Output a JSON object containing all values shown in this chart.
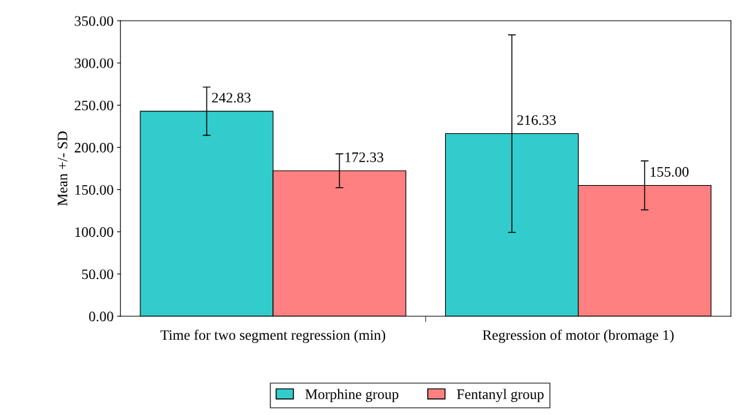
{
  "chart_data": {
    "type": "bar",
    "ylabel": "Mean +/- SD",
    "categories": [
      "Time for two segment regression (min)",
      "Regression of motor (bromage 1)"
    ],
    "series": [
      {
        "name": "Morphine group",
        "color": "#33cccc",
        "values": [
          242.83,
          216.33
        ],
        "errors": [
          28.6,
          117
        ],
        "value_labels": [
          "242.83",
          "216.33"
        ]
      },
      {
        "name": "Fentanyl group",
        "color": "#ff8080",
        "values": [
          172.33,
          155.0
        ],
        "errors": [
          20,
          29
        ],
        "value_labels": [
          "172.33",
          "155.00"
        ]
      }
    ],
    "ylim": [
      0,
      350
    ],
    "yticks": [
      {
        "value": 0,
        "label": "0.00"
      },
      {
        "value": 50,
        "label": "50.00"
      },
      {
        "value": 100,
        "label": "100.00"
      },
      {
        "value": 150,
        "label": "150.00"
      },
      {
        "value": 200,
        "label": "200.00"
      },
      {
        "value": 250,
        "label": "250.00"
      },
      {
        "value": 300,
        "label": "300.00"
      },
      {
        "value": 350,
        "label": "350.00"
      }
    ],
    "grid": false,
    "legend": "bottom"
  }
}
